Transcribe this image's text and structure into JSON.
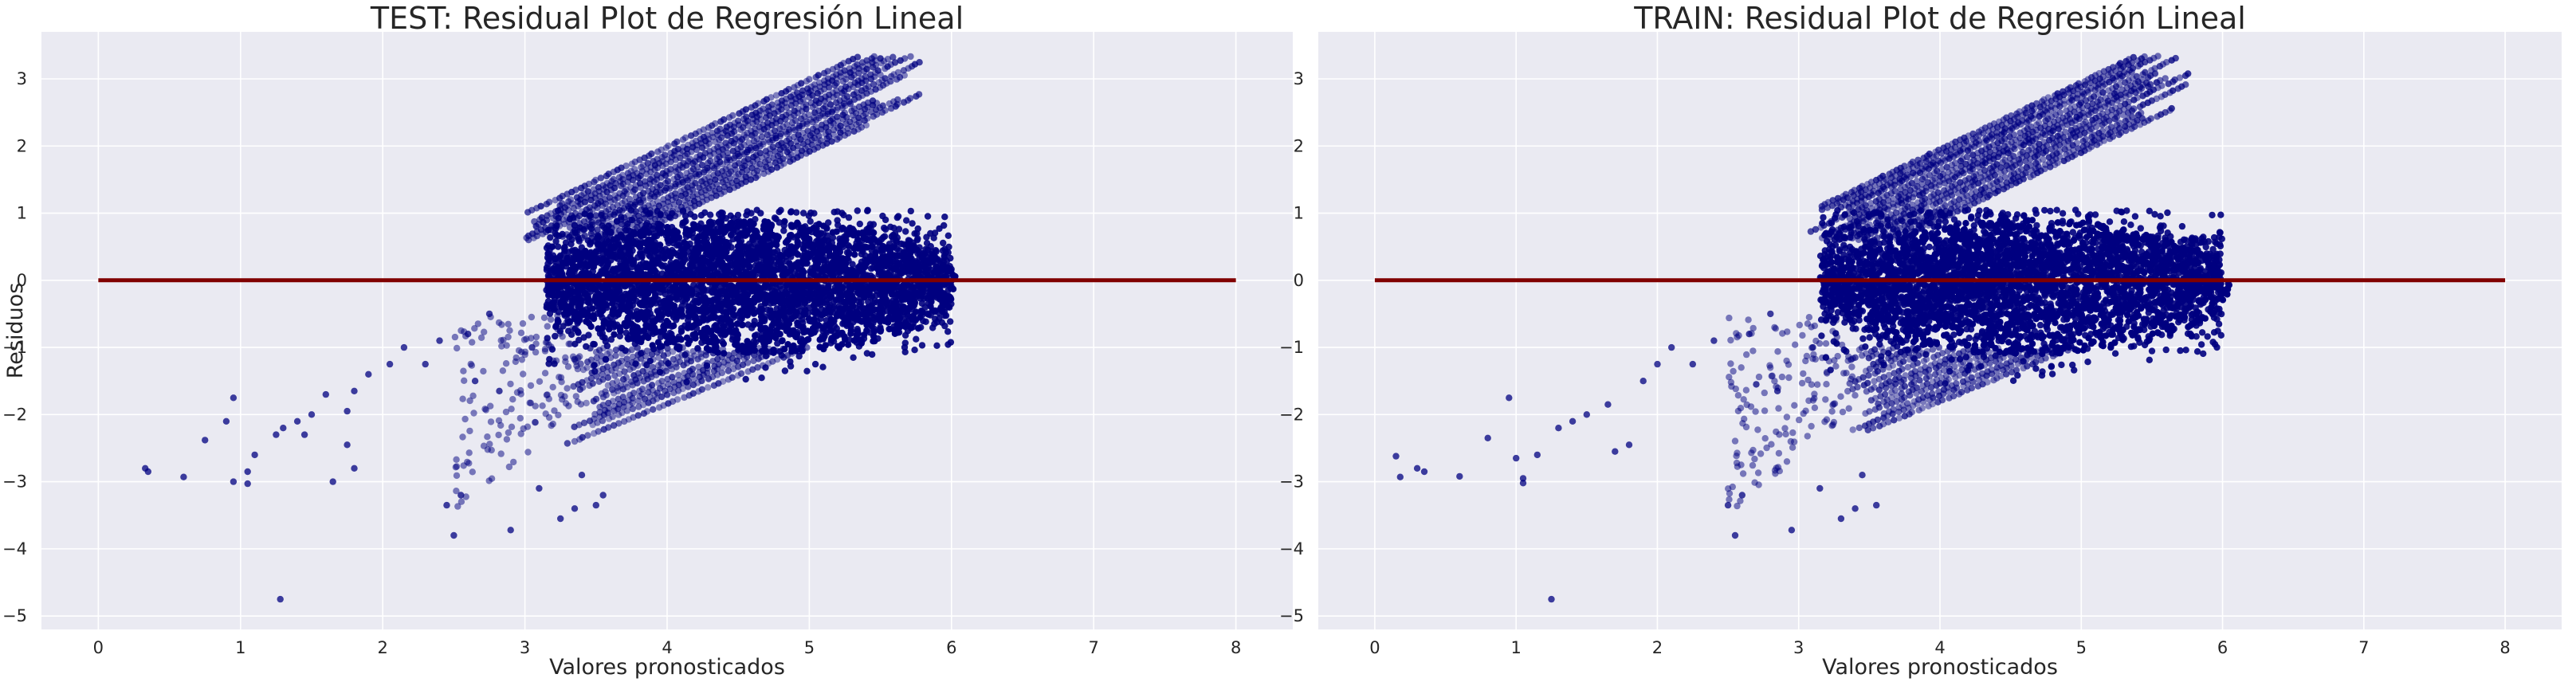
{
  "colors": {
    "figure_bg": "#ffffff",
    "axes_bg": "#eaeaf2",
    "grid": "#ffffff",
    "points": "#000080",
    "zero_line": "#800000",
    "text": "#262626"
  },
  "chart_data": [
    {
      "type": "scatter",
      "title": "TEST: Residual Plot de Regresión Lineal",
      "xlabel": "Valores pronosticados",
      "ylabel": "Residuos",
      "xlim": [
        -0.4,
        8.4
      ],
      "ylim": [
        -5.2,
        3.7
      ],
      "xticks": [
        "0",
        "1",
        "2",
        "3",
        "4",
        "5",
        "6",
        "7",
        "8"
      ],
      "yticks": [
        "−5",
        "−4",
        "−3",
        "−2",
        "−1",
        "0",
        "1",
        "2",
        "3"
      ],
      "grid": true,
      "hline": {
        "y": 0,
        "x": [
          0,
          8
        ]
      },
      "series": [
        {
          "values_outliers": [
            [
              0.33,
              -2.8
            ],
            [
              0.35,
              -2.85
            ],
            [
              0.6,
              -2.93
            ],
            [
              0.75,
              -2.38
            ],
            [
              0.9,
              -2.1
            ],
            [
              0.95,
              -1.75
            ],
            [
              0.95,
              -3.0
            ],
            [
              1.05,
              -3.03
            ],
            [
              1.05,
              -2.85
            ],
            [
              1.1,
              -2.6
            ],
            [
              1.25,
              -2.3
            ],
            [
              1.28,
              -4.75
            ],
            [
              1.3,
              -2.2
            ],
            [
              1.4,
              -2.1
            ],
            [
              1.45,
              -2.3
            ],
            [
              1.5,
              -2.0
            ],
            [
              1.6,
              -1.7
            ],
            [
              1.65,
              -3.0
            ],
            [
              1.75,
              -1.95
            ],
            [
              1.75,
              -2.45
            ],
            [
              1.8,
              -2.8
            ],
            [
              1.8,
              -1.65
            ],
            [
              1.9,
              -1.4
            ],
            [
              2.05,
              -1.25
            ],
            [
              2.15,
              -1.0
            ],
            [
              2.3,
              -1.25
            ],
            [
              2.4,
              -0.9
            ],
            [
              2.45,
              -3.35
            ],
            [
              2.5,
              -3.8
            ],
            [
              2.55,
              -3.2
            ],
            [
              2.6,
              -0.8
            ],
            [
              2.65,
              -1.5
            ],
            [
              2.75,
              -0.5
            ],
            [
              2.82,
              -1.65
            ],
            [
              2.9,
              -3.72
            ],
            [
              3.05,
              -1.0
            ],
            [
              3.1,
              -3.1
            ],
            [
              3.25,
              -3.55
            ],
            [
              3.35,
              -3.4
            ],
            [
              3.4,
              -2.9
            ],
            [
              3.5,
              -3.35
            ],
            [
              3.55,
              -3.2
            ]
          ],
          "trend_bands": [
            {
              "x": [
                2.8,
                5.7
              ],
              "y0": [
                -0.6,
                3.4
              ]
            },
            {
              "x": [
                3.2,
                6.0
              ],
              "y0": [
                -3.4,
                -0.8
              ]
            }
          ]
        }
      ]
    },
    {
      "type": "scatter",
      "title": "TRAIN: Residual Plot de Regresión Lineal",
      "xlabel": "Valores pronosticados",
      "ylabel": "",
      "xlim": [
        -0.4,
        8.4
      ],
      "ylim": [
        -5.2,
        3.7
      ],
      "xticks": [
        "0",
        "1",
        "2",
        "3",
        "4",
        "5",
        "6",
        "7",
        "8"
      ],
      "yticks": [
        "−5",
        "−4",
        "−3",
        "−2",
        "−1",
        "0",
        "1",
        "2",
        "3"
      ],
      "grid": true,
      "hline": {
        "y": 0,
        "x": [
          0,
          8
        ]
      },
      "series": [
        {
          "values_outliers": [
            [
              0.15,
              -2.62
            ],
            [
              0.18,
              -2.93
            ],
            [
              0.3,
              -2.8
            ],
            [
              0.35,
              -2.85
            ],
            [
              0.6,
              -2.92
            ],
            [
              0.8,
              -2.35
            ],
            [
              0.95,
              -1.75
            ],
            [
              1.0,
              -2.65
            ],
            [
              1.05,
              -2.95
            ],
            [
              1.05,
              -3.02
            ],
            [
              1.15,
              -2.6
            ],
            [
              1.25,
              -4.75
            ],
            [
              1.3,
              -2.2
            ],
            [
              1.4,
              -2.1
            ],
            [
              1.5,
              -2.0
            ],
            [
              1.65,
              -1.85
            ],
            [
              1.7,
              -2.55
            ],
            [
              1.8,
              -2.45
            ],
            [
              1.9,
              -1.5
            ],
            [
              2.0,
              -1.25
            ],
            [
              2.1,
              -1.0
            ],
            [
              2.25,
              -1.25
            ],
            [
              2.4,
              -0.9
            ],
            [
              2.5,
              -3.35
            ],
            [
              2.55,
              -3.8
            ],
            [
              2.6,
              -3.2
            ],
            [
              2.65,
              -0.8
            ],
            [
              2.7,
              -1.55
            ],
            [
              2.8,
              -0.5
            ],
            [
              2.85,
              -1.65
            ],
            [
              2.95,
              -3.72
            ],
            [
              3.1,
              -1.0
            ],
            [
              3.15,
              -3.1
            ],
            [
              3.3,
              -3.55
            ],
            [
              3.4,
              -3.4
            ],
            [
              3.45,
              -2.9
            ],
            [
              3.55,
              -3.35
            ]
          ],
          "trend_bands": [
            {
              "x": [
                2.8,
                5.7
              ],
              "y0": [
                -0.6,
                3.4
              ]
            },
            {
              "x": [
                3.2,
                6.0
              ],
              "y0": [
                -3.4,
                -0.8
              ]
            }
          ]
        }
      ]
    }
  ]
}
